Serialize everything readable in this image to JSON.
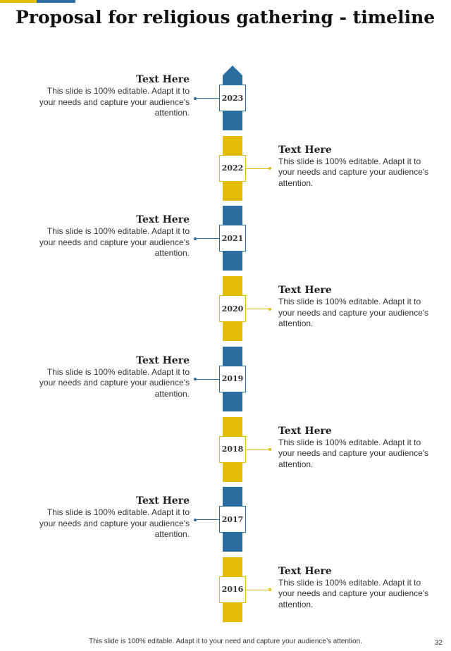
{
  "title": "Proposal for religious gathering - timeline",
  "colors": {
    "blue": "#2A6D9E",
    "yellow": "#E3BD05"
  },
  "timeline": [
    {
      "year": "2023",
      "heading": "Text Here",
      "body": "This slide is 100% editable.  Adapt it to your needs and capture your audience's attention.",
      "side": "left",
      "color": "blue"
    },
    {
      "year": "2022",
      "heading": "Text Here",
      "body": "This slide is 100% editable.  Adapt it to your needs and capture your audience's attention.",
      "side": "right",
      "color": "yellow"
    },
    {
      "year": "2021",
      "heading": "Text Here",
      "body": "This slide is 100% editable.  Adapt it to your needs and capture your audience's attention.",
      "side": "left",
      "color": "blue"
    },
    {
      "year": "2020",
      "heading": "Text Here",
      "body": "This slide is 100% editable.  Adapt it to your needs and capture your audience's attention.",
      "side": "right",
      "color": "yellow"
    },
    {
      "year": "2019",
      "heading": "Text Here",
      "body": "This slide is 100% editable.  Adapt it to your needs and capture your audience's attention.",
      "side": "left",
      "color": "blue"
    },
    {
      "year": "2018",
      "heading": "Text Here",
      "body": "This slide is 100% editable.  Adapt it to your needs and capture your audience's attention.",
      "side": "right",
      "color": "yellow"
    },
    {
      "year": "2017",
      "heading": "Text Here",
      "body": "This slide is 100% editable.  Adapt it to your needs and capture your audience's attention.",
      "side": "left",
      "color": "blue"
    },
    {
      "year": "2016",
      "heading": "Text Here",
      "body": "This slide is 100% editable.  Adapt it to your needs and capture your audience's attention.",
      "side": "right",
      "color": "yellow"
    }
  ],
  "footer": "This slide is 100% editable. Adapt it to your need and capture your audience’s attention.",
  "page_number": "32"
}
